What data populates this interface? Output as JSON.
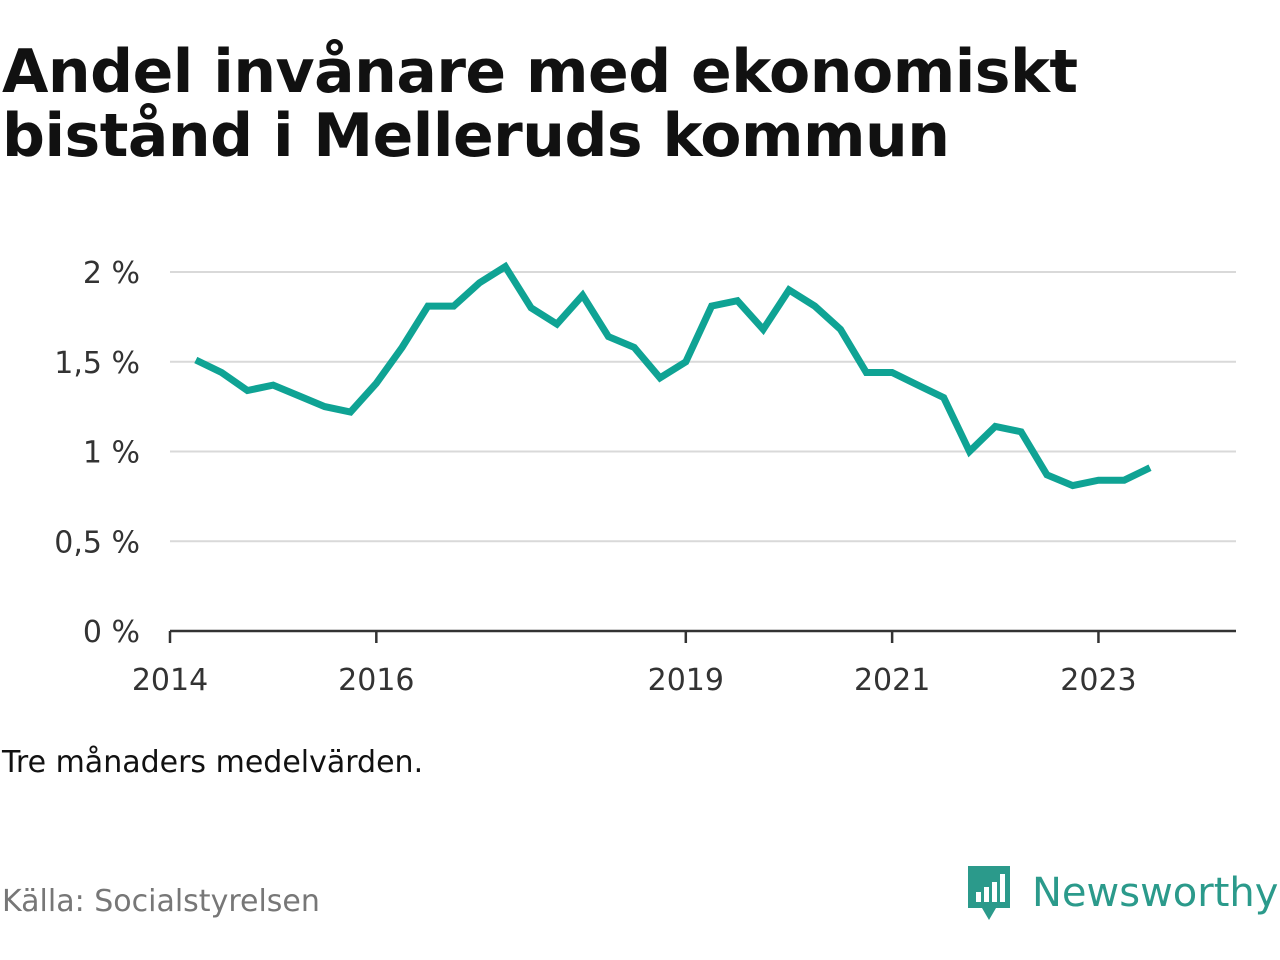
{
  "page_title_line1": "Andel invånare med ekonomiskt",
  "page_title_line2": "bistånd i Melleruds kommun",
  "note": "Tre månaders medelvärden.",
  "source": "Källa: Socialstyrelsen",
  "brand": {
    "name": "Newsworthy",
    "icon": "newsworthy-logo-icon",
    "color": "#2b9a8b"
  },
  "chart_data": {
    "type": "line",
    "line_color": "#0fa394",
    "grid": true,
    "x_range": [
      "2014-01",
      "2024-05"
    ],
    "ylim": [
      0,
      2
    ],
    "y_ticks": [
      {
        "value": 0,
        "label": "0 %"
      },
      {
        "value": 0.5,
        "label": "0,5 %"
      },
      {
        "value": 1,
        "label": "1 %"
      },
      {
        "value": 1.5,
        "label": "1,5 %"
      },
      {
        "value": 2,
        "label": "2 %"
      }
    ],
    "x_ticks": [
      {
        "date": "2014-01",
        "label": "2014"
      },
      {
        "date": "2016-01",
        "label": "2016"
      },
      {
        "date": "2019-01",
        "label": "2019"
      },
      {
        "date": "2021-01",
        "label": "2021"
      },
      {
        "date": "2023-01",
        "label": "2023"
      }
    ],
    "x_minor_ticks": [
      "2014-01",
      "2016-01",
      "2019-01",
      "2021-01",
      "2023-01"
    ],
    "series": [
      {
        "points": [
          {
            "x": "2014-04",
            "y": 1.51
          },
          {
            "x": "2014-07",
            "y": 1.44
          },
          {
            "x": "2014-10",
            "y": 1.34
          },
          {
            "x": "2015-01",
            "y": 1.37
          },
          {
            "x": "2015-04",
            "y": 1.31
          },
          {
            "x": "2015-07",
            "y": 1.25
          },
          {
            "x": "2015-10",
            "y": 1.22
          },
          {
            "x": "2016-01",
            "y": 1.38
          },
          {
            "x": "2016-04",
            "y": 1.58
          },
          {
            "x": "2016-07",
            "y": 1.81
          },
          {
            "x": "2016-10",
            "y": 1.81
          },
          {
            "x": "2017-01",
            "y": 1.94
          },
          {
            "x": "2017-04",
            "y": 2.03
          },
          {
            "x": "2017-07",
            "y": 1.8
          },
          {
            "x": "2017-10",
            "y": 1.71
          },
          {
            "x": "2018-01",
            "y": 1.87
          },
          {
            "x": "2018-04",
            "y": 1.64
          },
          {
            "x": "2018-07",
            "y": 1.58
          },
          {
            "x": "2018-10",
            "y": 1.41
          },
          {
            "x": "2019-01",
            "y": 1.5
          },
          {
            "x": "2019-04",
            "y": 1.81
          },
          {
            "x": "2019-07",
            "y": 1.84
          },
          {
            "x": "2019-10",
            "y": 1.68
          },
          {
            "x": "2020-01",
            "y": 1.9
          },
          {
            "x": "2020-04",
            "y": 1.81
          },
          {
            "x": "2020-07",
            "y": 1.68
          },
          {
            "x": "2020-10",
            "y": 1.44
          },
          {
            "x": "2021-01",
            "y": 1.44
          },
          {
            "x": "2021-04",
            "y": 1.37
          },
          {
            "x": "2021-07",
            "y": 1.3
          },
          {
            "x": "2021-10",
            "y": 1.0
          },
          {
            "x": "2022-01",
            "y": 1.14
          },
          {
            "x": "2022-04",
            "y": 1.11
          },
          {
            "x": "2022-07",
            "y": 0.87
          },
          {
            "x": "2022-10",
            "y": 0.81
          },
          {
            "x": "2023-01",
            "y": 0.84
          },
          {
            "x": "2023-04",
            "y": 0.84
          },
          {
            "x": "2023-07",
            "y": 0.91
          }
        ]
      }
    ]
  }
}
